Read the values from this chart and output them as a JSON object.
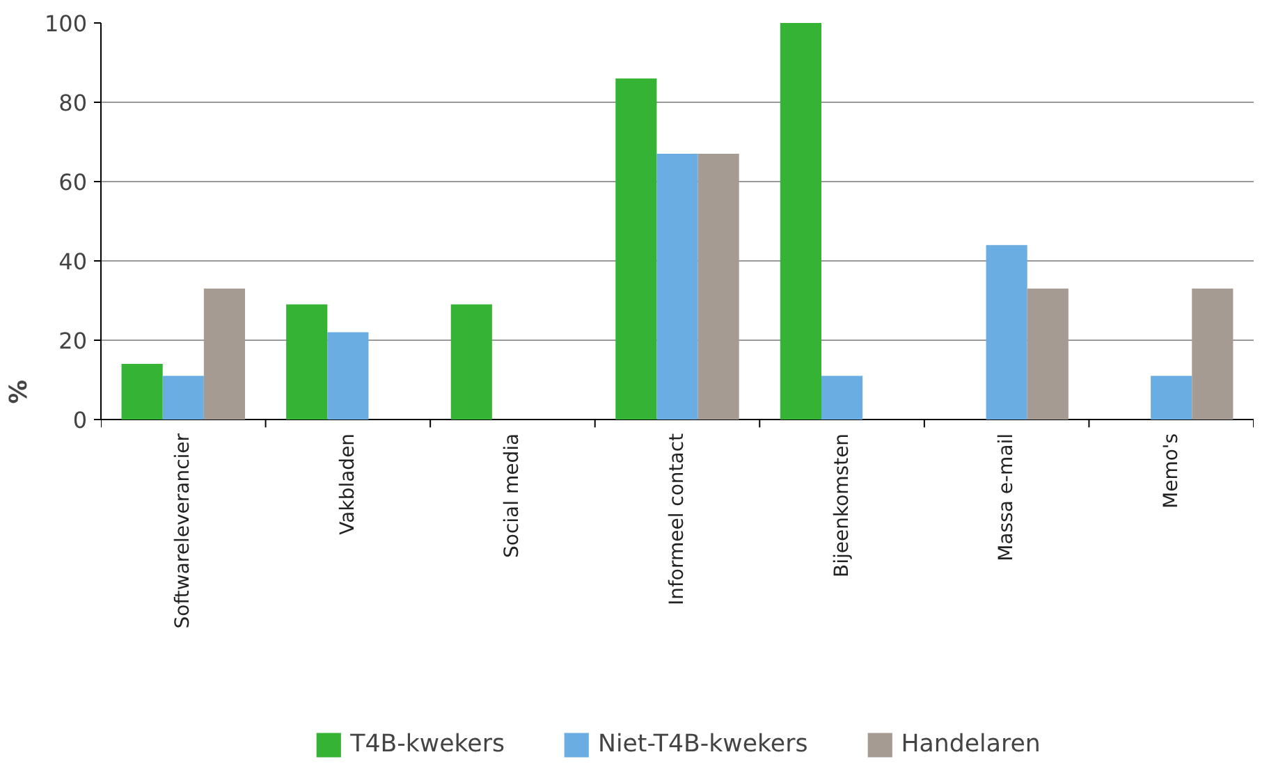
{
  "chart_data": {
    "type": "bar",
    "ylabel": "%",
    "categories": [
      "Softwareleverancier",
      "Vakbladen",
      "Social media",
      "Informeel contact",
      "Bijeenkomsten",
      "Massa e-mail",
      "Memo's"
    ],
    "series": [
      {
        "name": "T4B-kwekers",
        "color": "#35b335",
        "values": [
          14,
          29,
          29,
          86,
          100,
          0,
          0
        ]
      },
      {
        "name": "Niet-T4B-kwekers",
        "color": "#6aade2",
        "values": [
          11,
          22,
          0,
          67,
          11,
          44,
          11
        ]
      },
      {
        "name": "Handelaren",
        "color": "#a59b93",
        "values": [
          33,
          0,
          0,
          67,
          0,
          33,
          33
        ]
      }
    ],
    "ylim": [
      0,
      100
    ],
    "yticks": [
      0,
      20,
      40,
      60,
      80,
      100
    ],
    "grid": "y",
    "legend": "bottom"
  }
}
